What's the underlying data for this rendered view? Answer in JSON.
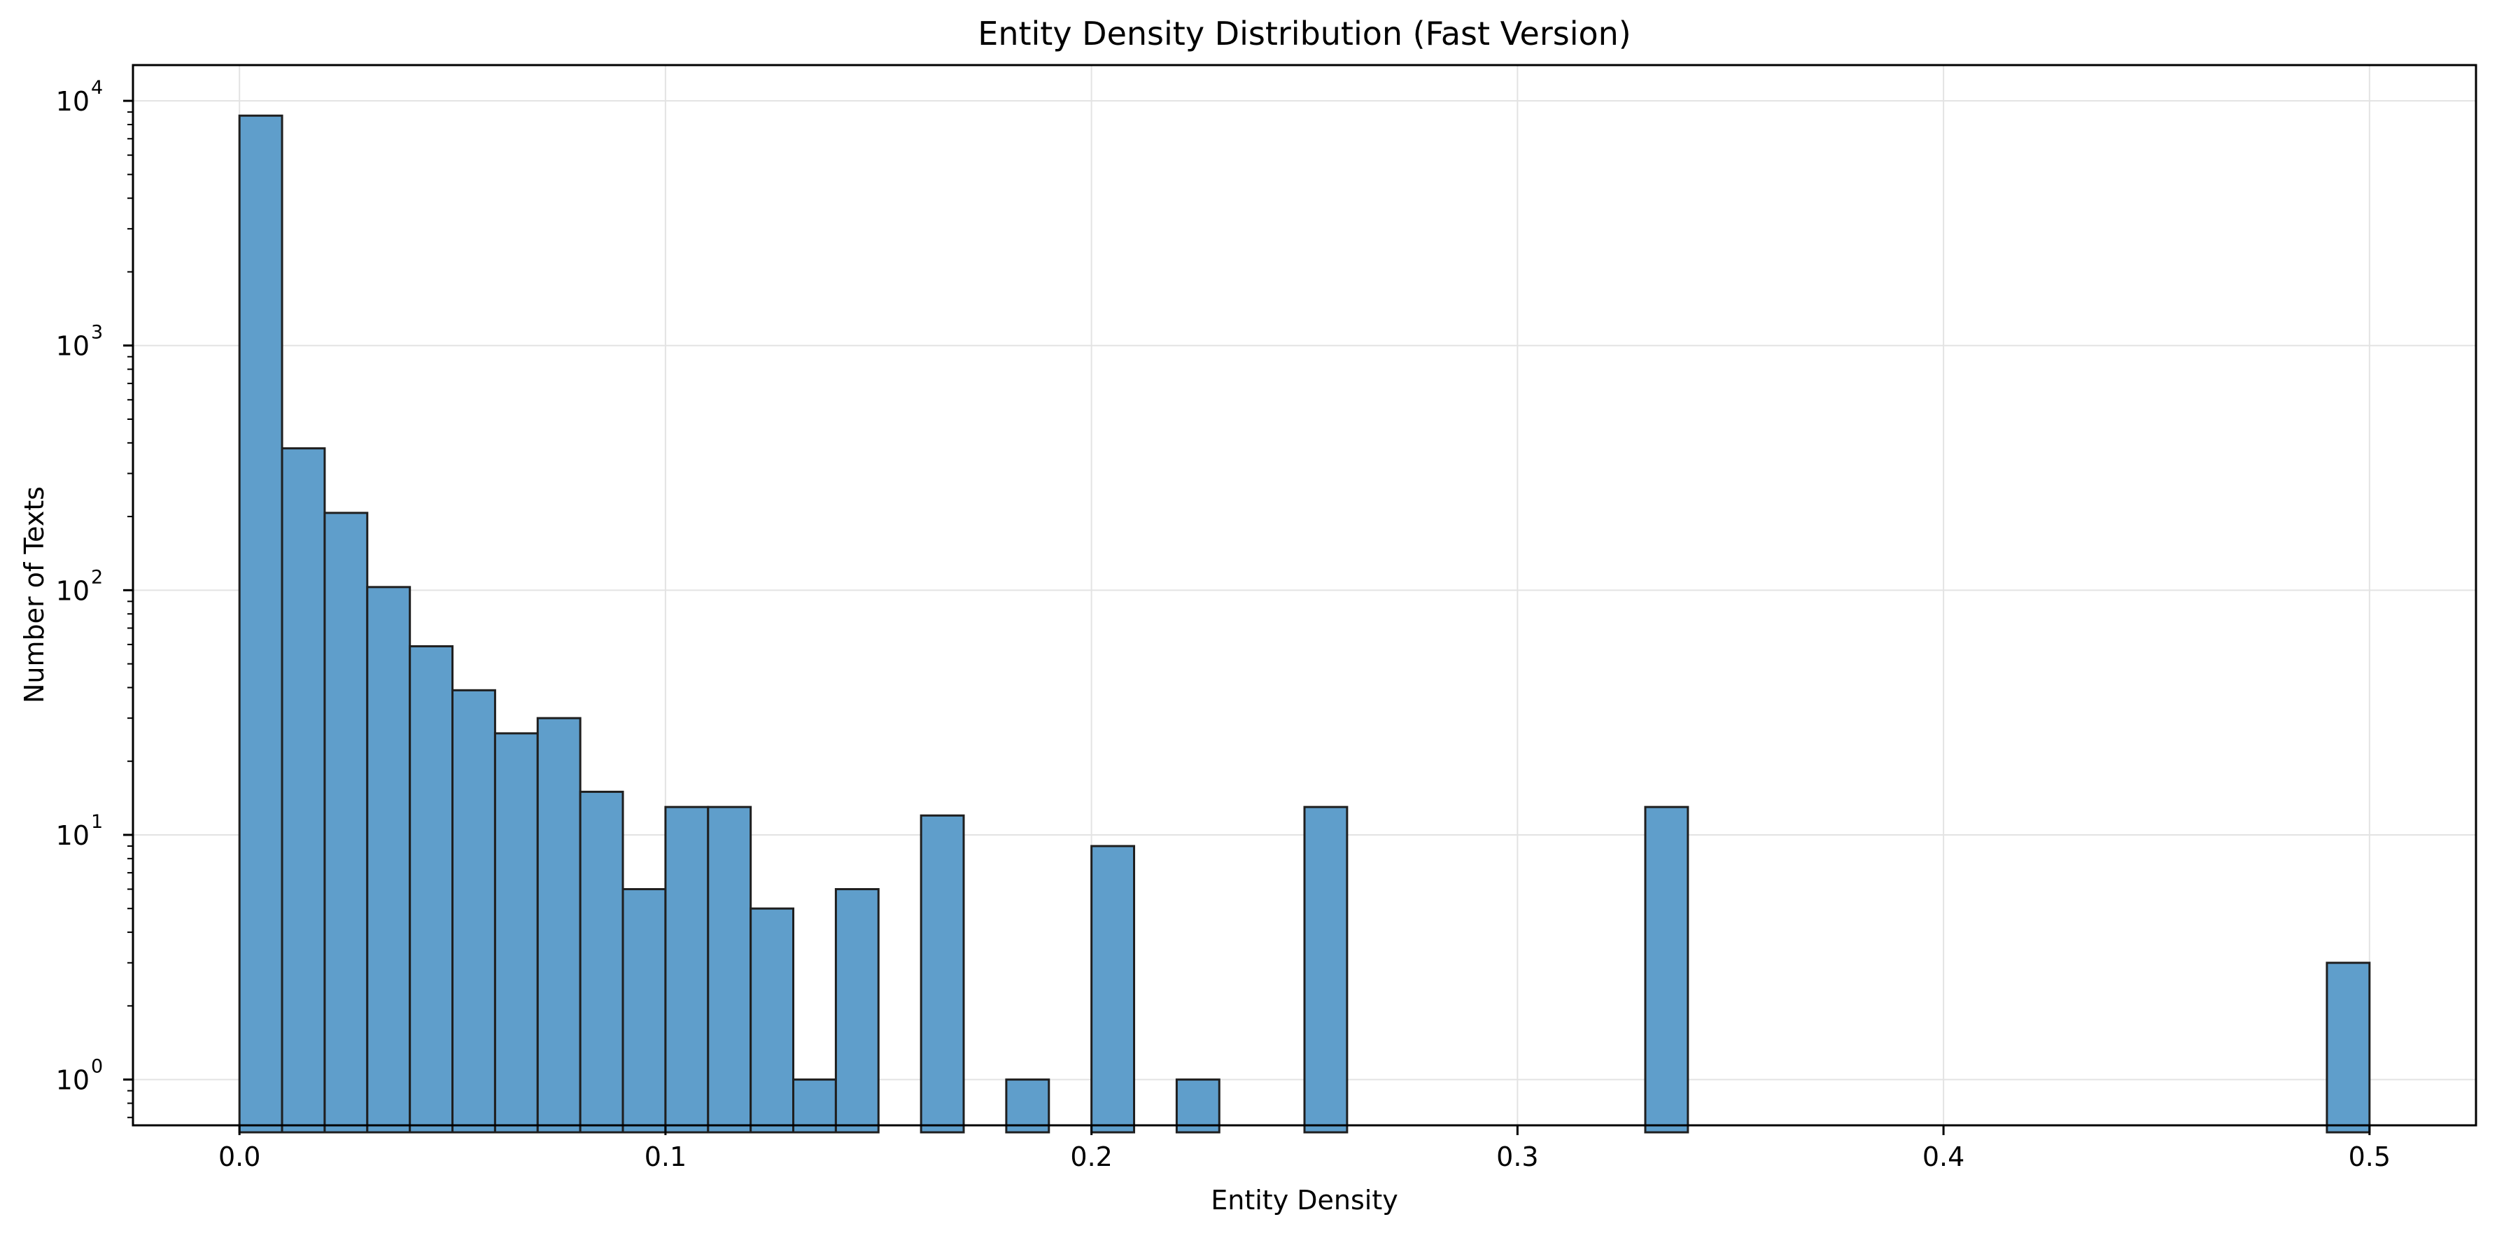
{
  "chart_data": {
    "type": "bar",
    "title": "Entity Density Distribution (Fast Version)",
    "xlabel": "Entity Density",
    "ylabel": "Number of Texts",
    "x_scale": "linear",
    "y_scale": "log",
    "xlim": [
      -0.025,
      0.525
    ],
    "ylim": [
      0.65,
      14000
    ],
    "x_ticks": [
      {
        "value": 0.0,
        "label": "0.0"
      },
      {
        "value": 0.1,
        "label": "0.1"
      },
      {
        "value": 0.2,
        "label": "0.2"
      },
      {
        "value": 0.3,
        "label": "0.3"
      },
      {
        "value": 0.4,
        "label": "0.4"
      },
      {
        "value": 0.5,
        "label": "0.5"
      }
    ],
    "y_ticks": [
      {
        "value": 1,
        "base": "10",
        "exp": "0"
      },
      {
        "value": 10,
        "base": "10",
        "exp": "1"
      },
      {
        "value": 100,
        "base": "10",
        "exp": "2"
      },
      {
        "value": 1000,
        "base": "10",
        "exp": "3"
      },
      {
        "value": 10000,
        "base": "10",
        "exp": "4"
      }
    ],
    "grid": true,
    "bar_color": "#5f9ecb",
    "edge_color": "#1f1f1f",
    "bin_width": 0.01,
    "bins": [
      {
        "start": 0.0,
        "count": 8700
      },
      {
        "start": 0.01,
        "count": 380
      },
      {
        "start": 0.02,
        "count": 207
      },
      {
        "start": 0.03,
        "count": 103
      },
      {
        "start": 0.04,
        "count": 59
      },
      {
        "start": 0.05,
        "count": 39
      },
      {
        "start": 0.06,
        "count": 26
      },
      {
        "start": 0.07,
        "count": 30
      },
      {
        "start": 0.08,
        "count": 15
      },
      {
        "start": 0.09,
        "count": 6
      },
      {
        "start": 0.1,
        "count": 13
      },
      {
        "start": 0.11,
        "count": 13
      },
      {
        "start": 0.12,
        "count": 5
      },
      {
        "start": 0.13,
        "count": 1
      },
      {
        "start": 0.14,
        "count": 6
      },
      {
        "start": 0.16,
        "count": 12
      },
      {
        "start": 0.18,
        "count": 1
      },
      {
        "start": 0.2,
        "count": 9
      },
      {
        "start": 0.22,
        "count": 1
      },
      {
        "start": 0.25,
        "count": 13
      },
      {
        "start": 0.33,
        "count": 13
      },
      {
        "start": 0.49,
        "count": 3
      }
    ]
  }
}
